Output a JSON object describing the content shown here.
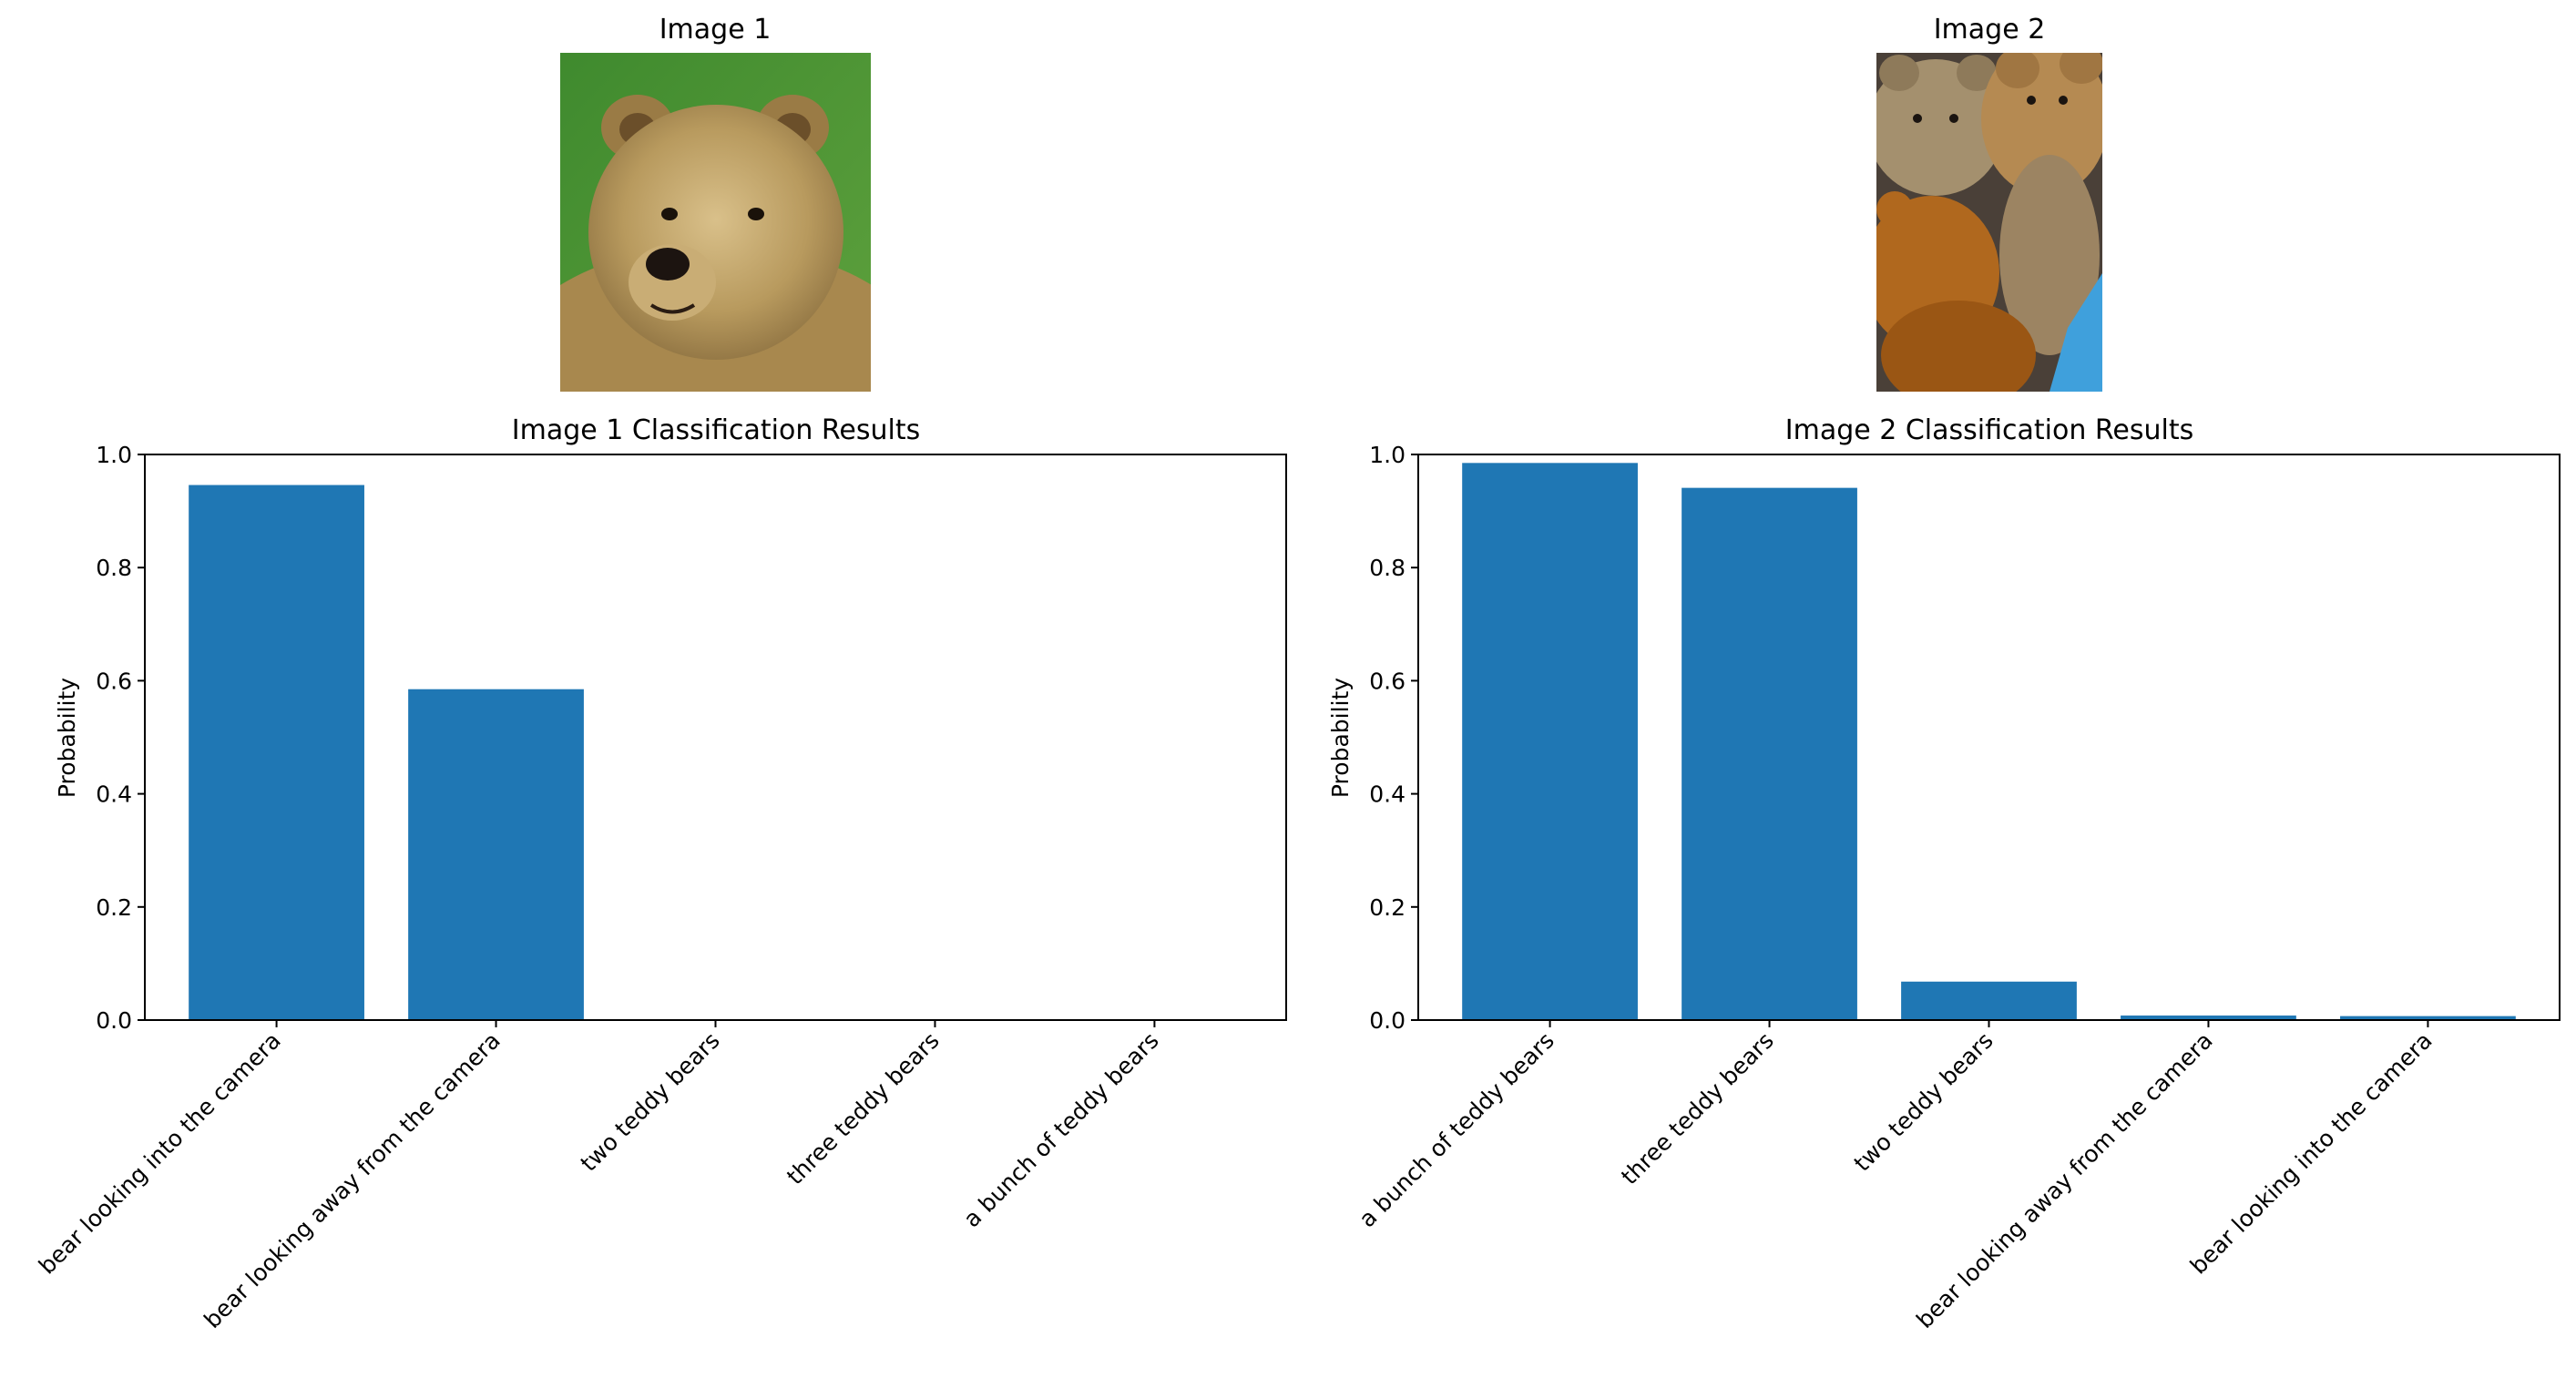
{
  "images": [
    {
      "title": "Image 1",
      "subject": "brown bear photo"
    },
    {
      "title": "Image 2",
      "subject": "teddy bears photo"
    }
  ],
  "chart_data": [
    {
      "type": "bar",
      "title": "Image 1 Classification Results",
      "xlabel": "",
      "ylabel": "Probability",
      "ylim": [
        0,
        1
      ],
      "yticks": [
        "0.0",
        "0.2",
        "0.4",
        "0.6",
        "0.8",
        "1.0"
      ],
      "categories": [
        "bear looking into the camera",
        "bear looking away from the camera",
        "two teddy bears",
        "three teddy bears",
        "a bunch of teddy bears"
      ],
      "values": [
        0.946,
        0.585,
        0.0,
        0.0,
        0.0
      ],
      "color": "#1f77b4",
      "grid": false
    },
    {
      "type": "bar",
      "title": "Image 2 Classification Results",
      "xlabel": "",
      "ylabel": "Probability",
      "ylim": [
        0,
        1
      ],
      "yticks": [
        "0.0",
        "0.2",
        "0.4",
        "0.6",
        "0.8",
        "1.0"
      ],
      "categories": [
        "a bunch of teddy bears",
        "three teddy bears",
        "two teddy bears",
        "bear looking away from the camera",
        "bear looking into the camera"
      ],
      "values": [
        0.985,
        0.941,
        0.068,
        0.008,
        0.007
      ],
      "color": "#1f77b4",
      "grid": false
    }
  ]
}
